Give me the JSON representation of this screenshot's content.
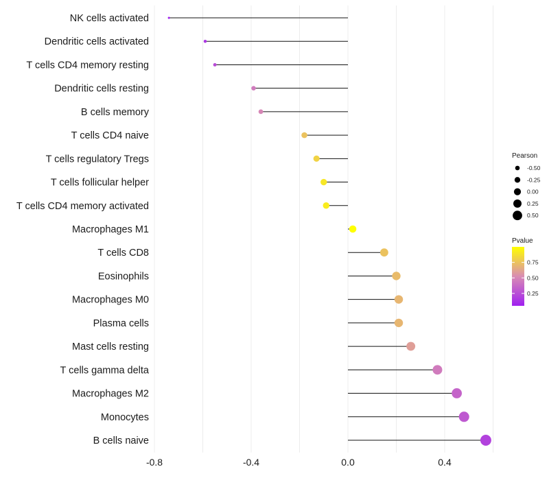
{
  "chart_data": {
    "type": "lollipop",
    "categories": [
      "NK cells activated",
      "Dendritic cells activated",
      "T cells CD4 memory resting",
      "Dendritic cells resting",
      "B cells memory",
      "T cells CD4 naive",
      "T cells regulatory  Tregs ",
      "T cells follicular helper",
      "T cells CD4 memory activated",
      "Macrophages M1",
      "T cells CD8",
      "Eosinophils",
      "Macrophages M0",
      "Plasma cells",
      "Mast cells resting",
      "T cells gamma delta",
      "Macrophages M2",
      "Monocytes",
      "B cells naive"
    ],
    "pearson": [
      -0.74,
      -0.59,
      -0.55,
      -0.39,
      -0.36,
      -0.18,
      -0.13,
      -0.1,
      -0.09,
      0.02,
      0.15,
      0.2,
      0.21,
      0.21,
      0.26,
      0.37,
      0.45,
      0.48,
      0.57
    ],
    "pvalue": [
      0.05,
      0.15,
      0.25,
      0.45,
      0.5,
      0.75,
      0.82,
      0.9,
      0.92,
      1.0,
      0.75,
      0.72,
      0.7,
      0.7,
      0.6,
      0.45,
      0.35,
      0.3,
      0.2
    ],
    "xlim": [
      -0.8,
      0.6
    ],
    "xticks": [
      -0.8,
      -0.4,
      0.0,
      0.4
    ],
    "xtick_labels": [
      "-0.8",
      "-0.4",
      "0.0",
      "0.4"
    ],
    "grid": true,
    "legend": {
      "placement": "right",
      "size_title": "Pearson",
      "size_values": [
        -0.5,
        -0.25,
        0.0,
        0.25,
        0.5
      ],
      "size_labels": [
        "-0.50",
        "-0.25",
        "0.00",
        "0.25",
        "0.50"
      ],
      "color_title": "Pvalue",
      "color_ticks": [
        0.75,
        0.5,
        0.25
      ],
      "color_labels": [
        "0.75",
        "0.50",
        "0.25"
      ],
      "color_range": [
        0.05,
        1.0
      ],
      "color_low": "#a020f0",
      "color_mid": "#d98cb3",
      "color_high": "#ffff00"
    }
  }
}
